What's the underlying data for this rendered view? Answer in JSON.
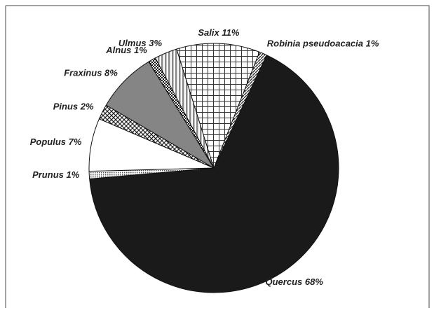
{
  "chart_data": {
    "type": "pie",
    "categories": [
      "Quercus",
      "Prunus",
      "Populus",
      "Pinus",
      "Fraxinus",
      "Alnus",
      "Ulmus",
      "Salix",
      "Robinia pseudoacacia"
    ],
    "values": [
      68,
      1,
      7,
      2,
      8,
      1,
      3,
      11,
      1
    ],
    "value_labels": [
      "68%",
      "1%",
      "7%",
      "2%",
      "8%",
      "1%",
      "3%",
      "11%",
      "1%"
    ],
    "fills": [
      "#1a1a1a",
      "dots",
      "#ffffff",
      "crosshatch",
      "#858585",
      "checker",
      "vstripes",
      "grid",
      "diagstripes"
    ]
  }
}
